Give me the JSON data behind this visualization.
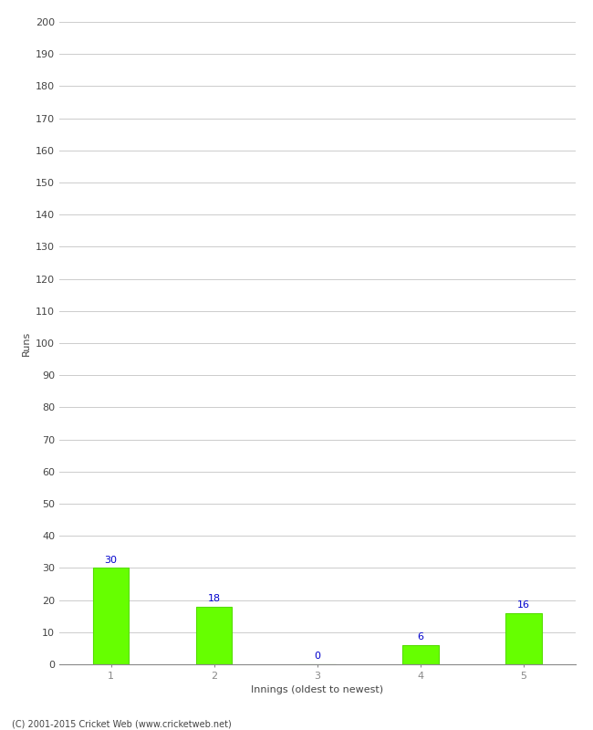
{
  "categories": [
    "1",
    "2",
    "3",
    "4",
    "5"
  ],
  "values": [
    30,
    18,
    0,
    6,
    16
  ],
  "bar_color": "#66ff00",
  "bar_edge_color": "#55dd00",
  "label_color": "#0000cc",
  "xlabel": "Innings (oldest to newest)",
  "ylabel": "Runs",
  "ylim": [
    0,
    200
  ],
  "yticks": [
    0,
    10,
    20,
    30,
    40,
    50,
    60,
    70,
    80,
    90,
    100,
    110,
    120,
    130,
    140,
    150,
    160,
    170,
    180,
    190,
    200
  ],
  "background_color": "#ffffff",
  "grid_color": "#cccccc",
  "footer": "(C) 2001-2015 Cricket Web (www.cricketweb.net)",
  "bar_width": 0.35,
  "label_fontsize": 8,
  "tick_fontsize": 8,
  "axis_label_fontsize": 8,
  "footer_fontsize": 7
}
